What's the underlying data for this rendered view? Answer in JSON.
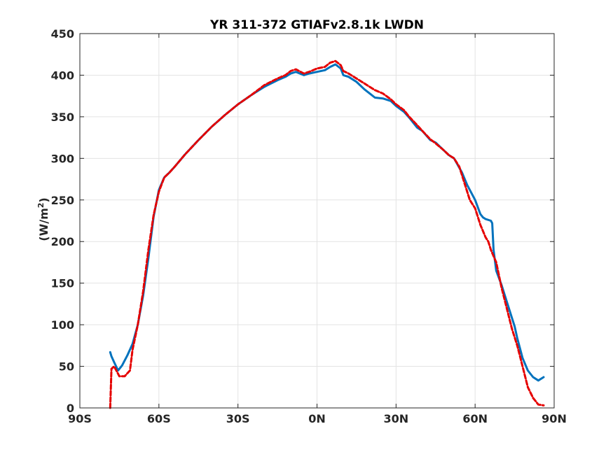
{
  "chart_data": {
    "type": "line",
    "title": "YR 311-372 GTIAFv2.8.1k LWDN",
    "xlabel": "",
    "ylabel": "(W/m²)",
    "ylabel_main": "(W/m",
    "ylabel_sup": "2",
    "ylabel_tail": ")",
    "xlim": [
      -90,
      90
    ],
    "ylim": [
      0,
      450
    ],
    "grid": true,
    "x_ticks": [
      -90,
      -60,
      -30,
      0,
      30,
      60,
      90
    ],
    "x_tick_labels": [
      "90S",
      "60S",
      "30S",
      "0N",
      "30N",
      "60N",
      "90N"
    ],
    "y_ticks": [
      0,
      50,
      100,
      150,
      200,
      250,
      300,
      350,
      400,
      450
    ],
    "y_tick_labels": [
      "0",
      "50",
      "100",
      "150",
      "200",
      "250",
      "300",
      "350",
      "400",
      "450"
    ],
    "series": [
      {
        "color": "#0072BD",
        "style": "solid",
        "x": [
          -78.5,
          -78,
          -77,
          -75.5,
          -74,
          -72,
          -70,
          -68,
          -66,
          -64,
          -62,
          -60,
          -58,
          -56,
          -54,
          -50,
          -45,
          -40,
          -35,
          -30,
          -25,
          -20,
          -15,
          -12,
          -10,
          -8,
          -5,
          -3,
          0,
          3,
          5,
          7,
          9,
          10,
          12,
          15,
          18,
          20,
          22,
          25,
          28,
          30,
          33,
          35,
          38,
          40,
          43,
          45,
          48,
          50,
          52,
          55,
          57,
          60,
          62,
          63,
          64,
          66,
          66.5,
          67,
          68,
          70,
          72,
          74,
          75,
          76,
          78,
          80,
          82,
          84,
          86
        ],
        "y": [
          67,
          62,
          55,
          45,
          51,
          63,
          77,
          100,
          135,
          180,
          230,
          262,
          277,
          283,
          290,
          305,
          322,
          338,
          352,
          365,
          376,
          386,
          394,
          398,
          402,
          404,
          400,
          402,
          404,
          406,
          410,
          413,
          408,
          400,
          398,
          392,
          383,
          378,
          373,
          372,
          369,
          363,
          356,
          349,
          337,
          333,
          322,
          319,
          310,
          304,
          300,
          283,
          268,
          250,
          233,
          229,
          227,
          225,
          222,
          190,
          165,
          148,
          128,
          108,
          98,
          84,
          60,
          45,
          37,
          33,
          37
        ]
      },
      {
        "color": "#E50000",
        "style": "dashed",
        "x": [
          -78.5,
          -78,
          -77,
          -76,
          -75,
          -73,
          -71,
          -70,
          -68,
          -66,
          -64,
          -62,
          -60,
          -58,
          -56,
          -54,
          -50,
          -45,
          -40,
          -35,
          -30,
          -25,
          -20,
          -15,
          -12,
          -10,
          -8,
          -5,
          -3,
          0,
          3,
          5,
          7,
          9,
          10,
          12,
          15,
          18,
          20,
          22,
          25,
          28,
          30,
          33,
          35,
          38,
          40,
          43,
          45,
          48,
          50,
          52,
          54,
          56,
          58,
          60,
          62,
          64,
          65,
          66,
          68,
          70,
          72,
          74,
          76,
          78,
          80,
          82,
          84,
          86
        ],
        "y": [
          0,
          47,
          50,
          44,
          38,
          38,
          45,
          70,
          100,
          140,
          190,
          232,
          260,
          277,
          283,
          290,
          305,
          322,
          338,
          352,
          365,
          376,
          388,
          396,
          400,
          405,
          407,
          402,
          404,
          408,
          410,
          415,
          417,
          412,
          405,
          402,
          396,
          390,
          386,
          382,
          378,
          371,
          365,
          358,
          350,
          340,
          333,
          323,
          318,
          310,
          304,
          300,
          290,
          270,
          250,
          240,
          220,
          205,
          200,
          190,
          175,
          145,
          120,
          95,
          75,
          50,
          25,
          12,
          4,
          3
        ]
      }
    ]
  }
}
